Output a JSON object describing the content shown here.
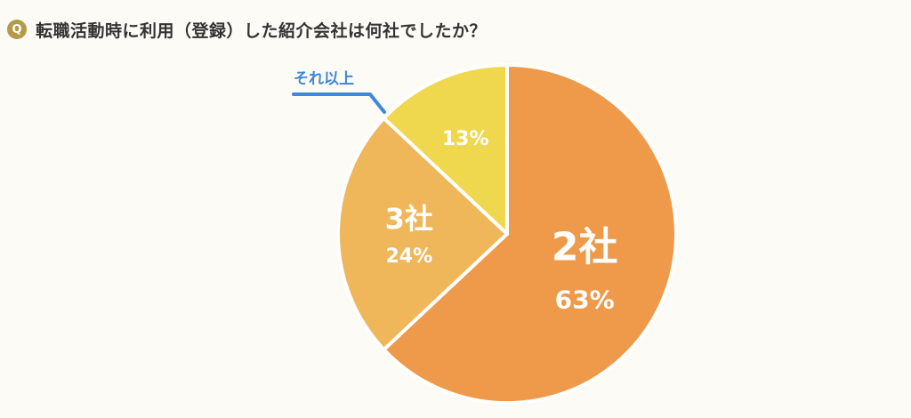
{
  "header": {
    "badge": "Q",
    "question": "転職活動時に利用（登録）した紹介会社は何社でしたか？"
  },
  "colors": {
    "background": "#fdfbf5",
    "badge": "#b39b4a",
    "slice_2": "#ee9a4a",
    "slice_3": "#efb75a",
    "slice_more": "#efd84e",
    "callout": "#3f88d6"
  },
  "chart_data": {
    "type": "pie",
    "title": "",
    "start": "12 o'clock, clockwise",
    "slices": [
      {
        "name": "2社",
        "value": 63,
        "label": "63%",
        "color": "#ee9a4a"
      },
      {
        "name": "3社",
        "value": 24,
        "label": "24%",
        "color": "#efb75a"
      },
      {
        "name": "それ以上",
        "value": 13,
        "label": "13%",
        "color": "#efd84e"
      }
    ]
  }
}
